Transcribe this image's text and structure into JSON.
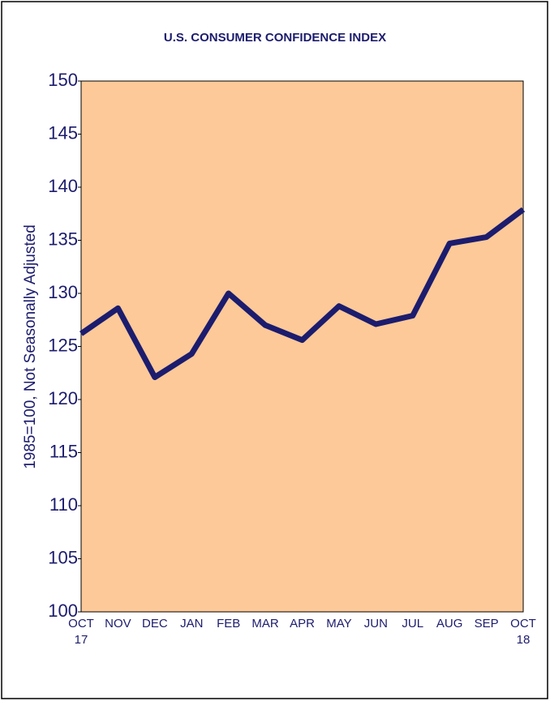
{
  "chart_data": {
    "type": "line",
    "title": "U.S. CONSUMER CONFIDENCE INDEX",
    "y_label": "1985=100, Not Seasonally Adjusted",
    "categories": [
      "OCT\n17",
      "NOV",
      "DEC",
      "JAN",
      "FEB",
      "MAR",
      "APR",
      "MAY",
      "JUN",
      "JUL",
      "AUG",
      "SEP",
      "OCT\n18"
    ],
    "series": [
      {
        "color": "#1c1c6e",
        "values": [
          126.2,
          128.6,
          122.1,
          124.3,
          130.0,
          127.0,
          125.6,
          128.8,
          127.1,
          127.9,
          134.7,
          135.3,
          137.9
        ]
      }
    ],
    "ylim": [
      100,
      150
    ],
    "yticks": [
      100,
      105,
      110,
      115,
      120,
      125,
      130,
      135,
      140,
      145,
      150
    ],
    "grid": false,
    "plot_color": "#fdc998"
  }
}
